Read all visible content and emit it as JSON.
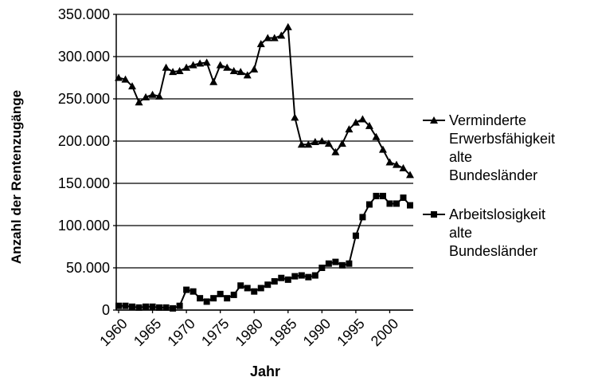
{
  "chart_data": {
    "type": "line",
    "x_label": "Jahr",
    "y_label": "Anzahl der Rentenzugänge",
    "x": [
      1960,
      1961,
      1962,
      1963,
      1964,
      1965,
      1966,
      1967,
      1968,
      1969,
      1970,
      1971,
      1972,
      1973,
      1974,
      1975,
      1976,
      1977,
      1978,
      1979,
      1980,
      1981,
      1982,
      1983,
      1984,
      1985,
      1986,
      1987,
      1988,
      1989,
      1990,
      1991,
      1992,
      1993,
      1994,
      1995,
      1996,
      1997,
      1998,
      1999,
      2000,
      2001,
      2002,
      2003
    ],
    "xlim": [
      1960,
      2003
    ],
    "xticks": [
      1960,
      1965,
      1970,
      1975,
      1980,
      1985,
      1990,
      1995,
      2000
    ],
    "ylim": [
      0,
      350000
    ],
    "yticks": [
      0,
      {
        "value": 50000,
        "label": "50.000"
      },
      {
        "value": 100000,
        "label": "100.000"
      },
      {
        "value": 150000,
        "label": "150.000"
      },
      {
        "value": 200000,
        "label": "200.000"
      },
      {
        "value": 250000,
        "label": "250.000"
      },
      {
        "value": 300000,
        "label": "300.000"
      },
      {
        "value": 350000,
        "label": "350.000"
      }
    ],
    "grid": true,
    "legend": "right",
    "series": [
      {
        "name": "Verminderte Erwerbsfähigkeit alte Bundesländer",
        "color": "#000000",
        "marker": "triangle",
        "values": [
          275000,
          273000,
          265000,
          246000,
          252000,
          255000,
          253000,
          287000,
          282000,
          283000,
          287000,
          290000,
          292000,
          293000,
          270000,
          290000,
          287000,
          283000,
          282000,
          278000,
          285000,
          315000,
          322000,
          322000,
          325000,
          335000,
          228000,
          196000,
          196000,
          199000,
          200000,
          197000,
          187000,
          197000,
          214000,
          222000,
          226000,
          218000,
          205000,
          190000,
          175000,
          172000,
          168000,
          160000
        ]
      },
      {
        "name": "Arbeitslosigkeit alte Bundesländer",
        "color": "#000000",
        "marker": "square",
        "values": [
          5000,
          5000,
          4000,
          3000,
          4000,
          4000,
          3000,
          3000,
          2000,
          5000,
          24000,
          22000,
          14000,
          10000,
          14000,
          19000,
          14000,
          18000,
          29000,
          26000,
          22000,
          26000,
          30000,
          34000,
          38000,
          36000,
          40000,
          41000,
          39000,
          41000,
          50000,
          55000,
          57000,
          53000,
          55000,
          88000,
          110000,
          125000,
          135000,
          135000,
          126000,
          126000,
          133000,
          124000
        ]
      }
    ]
  }
}
